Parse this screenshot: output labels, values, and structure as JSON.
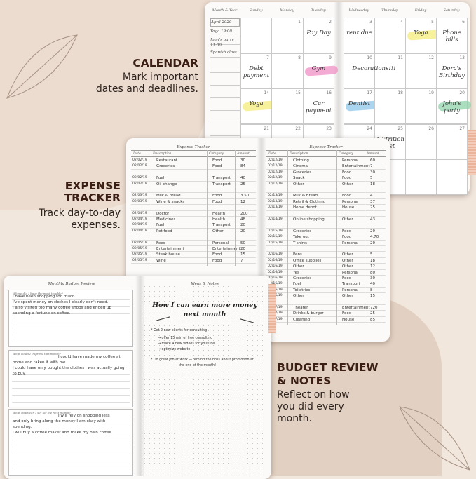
{
  "colors": {
    "background": "#f2e7dd",
    "title": "#3b1e14",
    "yellow": "#f5ec7a",
    "pink": "#ef8fc4",
    "blue": "#8fc7ea",
    "green": "#8fd3a9"
  },
  "features": [
    {
      "title_lines": [
        "CALENDAR"
      ],
      "desc_lines": [
        "Mark important",
        "dates and deadlines."
      ]
    },
    {
      "title_lines": [
        "EXPENSE",
        "TRACKER"
      ],
      "desc_lines": [
        "Track day-to-day",
        "expenses."
      ]
    },
    {
      "title_lines": [
        "BUDGET REVIEW",
        "& NOTES"
      ],
      "desc_lines": [
        "Reflect on how",
        "you did every",
        "month."
      ]
    }
  ],
  "calendar": {
    "headers": [
      "Month & Year",
      "Sunday",
      "Monday",
      "Tuesday",
      "Wednesday",
      "Thursday",
      "Friday",
      "Saturday"
    ],
    "sidebar": [
      "April 2020",
      "Yoga 19:00",
      "John's party",
      "11:00",
      "Spanish class"
    ],
    "weeks": [
      [
        {
          "day": ""
        },
        {
          "day": "1"
        },
        {
          "day": "2",
          "note": "Pay Day"
        },
        {
          "day": "3",
          "note": "rent due"
        },
        {
          "day": "4"
        },
        {
          "day": "5",
          "note": "Yoga",
          "highlight": "yellow"
        },
        {
          "day": "6",
          "note": "Phone bills"
        }
      ],
      [
        {
          "day": "7",
          "note": "Debt payment"
        },
        {
          "day": "8"
        },
        {
          "day": "9",
          "note": "Gym",
          "highlight": "pink"
        },
        {
          "day": "10",
          "note": "Decorations!!!"
        },
        {
          "day": "11"
        },
        {
          "day": "12"
        },
        {
          "day": "13",
          "note": "Dora's Birthday"
        }
      ],
      [
        {
          "day": "14",
          "note": "Yoga",
          "highlight": "yellow"
        },
        {
          "day": "15"
        },
        {
          "day": "16",
          "note": "Car payment"
        },
        {
          "day": "17",
          "note": "Dentist",
          "highlight": "blue"
        },
        {
          "day": "18"
        },
        {
          "day": "19"
        },
        {
          "day": "20",
          "note": "John's party",
          "highlight": "green"
        }
      ],
      [
        {
          "day": "21"
        },
        {
          "day": "22"
        },
        {
          "day": "23"
        },
        {
          "day": "24"
        },
        {
          "day": "25",
          "note": "Nutrition list"
        },
        {
          "day": "26"
        },
        {
          "day": "27"
        }
      ],
      [
        {
          "day": ""
        },
        {
          "day": ""
        },
        {
          "day": ""
        },
        {
          "day": ""
        },
        {
          "day": ""
        },
        {
          "day": ""
        },
        {
          "day": ""
        }
      ]
    ]
  },
  "expense": {
    "title": "Expense Tracker",
    "columns": [
      "Date",
      "Description",
      "Category",
      "Amount"
    ],
    "left_rows": [
      [
        "02/02/19",
        "Restaurant",
        "Food",
        "30"
      ],
      [
        "02/02/19",
        "Groceries",
        "Food",
        "84"
      ],
      [],
      [
        "02/02/19",
        "Fuel",
        "Transport",
        "40"
      ],
      [
        "02/02/19",
        "Oil change",
        "Transport",
        "25"
      ],
      [],
      [
        "02/03/19",
        "Milk & bread",
        "Food",
        "3.50"
      ],
      [
        "02/03/19",
        "Wine & snacks",
        "Food",
        "12"
      ],
      [],
      [
        "02/04/19",
        "Doctor",
        "Health",
        "200"
      ],
      [
        "02/04/19",
        "Medicines",
        "Health",
        "48"
      ],
      [
        "02/04/19",
        "Fuel",
        "Transport",
        "20"
      ],
      [
        "02/04/19",
        "Pet food",
        "Other",
        "20"
      ],
      [],
      [
        "02/05/19",
        "Fees",
        "Personal",
        "50"
      ],
      [
        "02/05/19",
        "Entertainment",
        "Entertainment",
        "20"
      ],
      [
        "02/05/19",
        "Steak house",
        "Food",
        "15"
      ],
      [
        "02/05/19",
        "Wine",
        "Food",
        "7"
      ]
    ],
    "right_rows": [
      [
        "02/12/19",
        "Clothing",
        "Personal",
        "60"
      ],
      [
        "02/12/19",
        "Cinema",
        "Entertainment",
        "7"
      ],
      [
        "02/12/19",
        "Groceries",
        "Food",
        "30"
      ],
      [
        "02/12/19",
        "Snack",
        "Food",
        "5"
      ],
      [
        "02/12/19",
        "Other",
        "Other",
        "18"
      ],
      [],
      [
        "02/13/19",
        "Milk & Bread",
        "Food",
        "4"
      ],
      [
        "02/13/19",
        "Retail & Clothing",
        "Personal",
        "37"
      ],
      [
        "02/13/19",
        "Home depot",
        "House",
        "25"
      ],
      [],
      [
        "02/14/19",
        "Online shopping",
        "Other",
        "43"
      ],
      [],
      [
        "02/15/19",
        "Groceries",
        "Food",
        "20"
      ],
      [
        "02/15/19",
        "Take out",
        "Food",
        "4.70"
      ],
      [
        "02/15/19",
        "T-shirts",
        "Personal",
        "20"
      ],
      [],
      [
        "02/16/19",
        "Pens",
        "Other",
        "5"
      ],
      [
        "02/16/19",
        "Office supplies",
        "Other",
        "18"
      ],
      [
        "02/16/19",
        "Other",
        "Other",
        "12"
      ],
      [
        "02/16/19",
        "Yes",
        "Personal",
        "80"
      ],
      [
        "02/16/19",
        "Groceries",
        "Food",
        "30"
      ],
      [
        "02/16/19",
        "Fuel",
        "Transport",
        "40"
      ],
      [
        "02/16/19",
        "Toiletries",
        "Personal",
        "8"
      ],
      [
        "02/16/19",
        "Other",
        "Other",
        "15"
      ],
      [],
      [
        "02/17/19",
        "Theater",
        "Entertainment",
        "720"
      ],
      [
        "02/17/19",
        "Drinks & burger",
        "Food",
        "25"
      ],
      [
        "02/17/19",
        "Cleaning",
        "House",
        "85"
      ]
    ]
  },
  "budget_review": {
    "title": "Monthly Budget Review",
    "sections": [
      {
        "question": "Where did I have the most trouble?",
        "answer": [
          "I have been shopping too much.",
          "I've spent money on clothes I clearly don't need.",
          "I also visited too many coffee shops and ended up",
          "spending a fortune on coffee."
        ]
      },
      {
        "question": "What could I improve this month?",
        "answer": [
          "I could have made my coffee at",
          "home and taken it with me.",
          "I could have only bought the clothes I was actually going",
          "to buy."
        ]
      },
      {
        "question": "What goals can I set for the next month?",
        "answer": [
          "I will rely on shopping less",
          "and only bring along the money I am okay with",
          "spending.",
          "I will buy a coffee maker and make my own coffee."
        ]
      }
    ]
  },
  "notes": {
    "title": "Ideas & Notes",
    "heading_lines": [
      "How I can earn more money",
      "next month"
    ],
    "bullets": [
      "* Get 2 new clients for consulting",
      "→ offer 15 min of free consulting",
      "→ make 4 new videos for youtube",
      "→ optimize website",
      "* Do great job at work → remind the boss about promotion at",
      "the end of the month!"
    ]
  }
}
